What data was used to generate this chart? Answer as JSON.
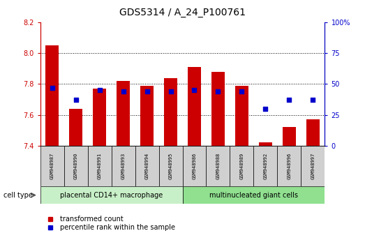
{
  "title": "GDS5314 / A_24_P100761",
  "samples": [
    "GSM948987",
    "GSM948990",
    "GSM948991",
    "GSM948993",
    "GSM948994",
    "GSM948995",
    "GSM948986",
    "GSM948988",
    "GSM948989",
    "GSM948992",
    "GSM948996",
    "GSM948997"
  ],
  "transformed_count": [
    8.05,
    7.64,
    7.77,
    7.82,
    7.79,
    7.84,
    7.91,
    7.88,
    7.79,
    7.42,
    7.52,
    7.57
  ],
  "percentile_rank": [
    47,
    37,
    45,
    44,
    44,
    44,
    45,
    44,
    44,
    30,
    37,
    37
  ],
  "ylim_left": [
    7.4,
    8.2
  ],
  "ylim_right": [
    0,
    100
  ],
  "yticks_left": [
    7.4,
    7.6,
    7.8,
    8.0,
    8.2
  ],
  "yticks_right": [
    0,
    25,
    50,
    75,
    100
  ],
  "grid_values": [
    7.6,
    7.8,
    8.0
  ],
  "cell_type_groups": [
    {
      "label": "placental CD14+ macrophage",
      "start": 0,
      "end": 6,
      "color": "#c8f0c8"
    },
    {
      "label": "multinucleated giant cells",
      "start": 6,
      "end": 12,
      "color": "#90e090"
    }
  ],
  "bar_color": "#cc0000",
  "dot_color": "#0000cc",
  "bar_bottom": 7.4,
  "bar_width": 0.55,
  "dot_size": 18,
  "legend_items": [
    {
      "label": "transformed count",
      "color": "#cc0000"
    },
    {
      "label": "percentile rank within the sample",
      "color": "#0000cc"
    }
  ],
  "left_axis_color": "#cc0000",
  "right_axis_color": "#0000cc",
  "title_fontsize": 10,
  "tick_fontsize": 7,
  "sample_fontsize": 5,
  "ct_fontsize": 7,
  "legend_fontsize": 7,
  "cell_type_label": "cell type",
  "sample_box_color": "#d0d0d0",
  "plot_bg": "#ffffff"
}
